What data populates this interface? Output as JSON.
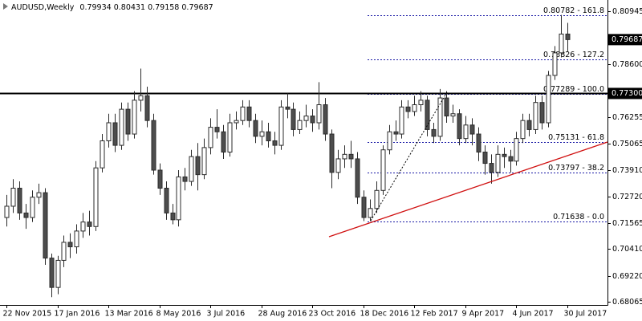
{
  "chart_data": {
    "type": "candlestick",
    "symbol": "AUDUSD,Weekly",
    "ohlc": [
      0.79934,
      0.80431,
      0.79158,
      0.79687
    ],
    "categories": [
      "22 Nov 2015",
      null,
      null,
      null,
      null,
      null,
      null,
      null,
      "17 Jan 2016",
      null,
      null,
      null,
      null,
      null,
      null,
      null,
      "13 Mar 2016",
      null,
      null,
      null,
      null,
      null,
      null,
      null,
      "8 May 2016",
      null,
      null,
      null,
      null,
      null,
      null,
      null,
      "3 Jul 2016",
      null,
      null,
      null,
      null,
      null,
      null,
      null,
      "28 Aug 2016",
      null,
      null,
      null,
      null,
      null,
      null,
      null,
      "23 Oct 2016",
      null,
      null,
      null,
      null,
      null,
      null,
      null,
      "18 Dec 2016",
      null,
      null,
      null,
      null,
      null,
      null,
      null,
      "12 Feb 2017",
      null,
      null,
      null,
      null,
      null,
      null,
      null,
      "9 Apr 2017",
      null,
      null,
      null,
      null,
      null,
      null,
      null,
      "4 Jun 2017",
      null,
      null,
      null,
      null,
      null,
      null,
      null,
      "30 Jul 2017"
    ],
    "open": [
      0.718,
      0.723,
      0.731,
      0.72,
      0.718,
      0.727,
      0.729,
      0.7,
      0.687,
      0.699,
      0.707,
      0.705,
      0.712,
      0.716,
      0.714,
      0.74,
      0.752,
      0.76,
      0.75,
      0.766,
      0.755,
      0.77,
      0.772,
      0.761,
      0.739,
      0.731,
      0.72,
      0.717,
      0.736,
      0.734,
      0.745,
      0.737,
      0.749,
      0.758,
      0.756,
      0.747,
      0.76,
      0.761,
      0.767,
      0.761,
      0.754,
      0.756,
      0.752,
      0.75,
      0.767,
      0.766,
      0.757,
      0.761,
      0.763,
      0.76,
      0.768,
      0.755,
      0.738,
      0.744,
      0.746,
      0.744,
      0.727,
      0.718,
      0.722,
      0.73,
      0.748,
      0.756,
      0.755,
      0.767,
      0.765,
      0.768,
      0.77,
      0.757,
      0.754,
      0.771,
      0.763,
      0.764,
      0.753,
      0.759,
      0.755,
      0.747,
      0.742,
      0.738,
      0.746,
      0.745,
      0.743,
      0.753,
      0.761,
      0.757,
      0.769,
      0.76,
      0.781,
      0.791,
      0.79934
    ],
    "high": [
      0.728,
      0.735,
      0.734,
      0.724,
      0.73,
      0.733,
      0.731,
      0.702,
      0.701,
      0.71,
      0.711,
      0.715,
      0.72,
      0.721,
      0.743,
      0.755,
      0.764,
      0.764,
      0.769,
      0.769,
      0.774,
      0.784,
      0.776,
      0.764,
      0.742,
      0.734,
      0.724,
      0.739,
      0.74,
      0.748,
      0.751,
      0.753,
      0.762,
      0.766,
      0.759,
      0.764,
      0.765,
      0.77,
      0.77,
      0.764,
      0.761,
      0.76,
      0.756,
      0.77,
      0.773,
      0.769,
      0.765,
      0.768,
      0.766,
      0.778,
      0.771,
      0.757,
      0.748,
      0.75,
      0.752,
      0.747,
      0.73,
      0.726,
      0.734,
      0.75,
      0.759,
      0.761,
      0.77,
      0.77,
      0.772,
      0.774,
      0.772,
      0.76,
      0.775,
      0.774,
      0.768,
      0.766,
      0.763,
      0.762,
      0.758,
      0.75,
      0.746,
      0.75,
      0.749,
      0.748,
      0.756,
      0.764,
      0.764,
      0.772,
      0.772,
      0.783,
      0.794,
      0.80782,
      0.80431
    ],
    "low": [
      0.714,
      0.72,
      0.717,
      0.713,
      0.716,
      0.724,
      0.697,
      0.6827,
      0.684,
      0.696,
      0.7,
      0.702,
      0.709,
      0.71,
      0.712,
      0.738,
      0.749,
      0.747,
      0.748,
      0.752,
      0.753,
      0.765,
      0.758,
      0.737,
      0.728,
      0.717,
      0.715,
      0.714,
      0.73,
      0.732,
      0.73,
      0.735,
      0.746,
      0.753,
      0.744,
      0.745,
      0.757,
      0.759,
      0.758,
      0.751,
      0.75,
      0.749,
      0.746,
      0.748,
      0.762,
      0.754,
      0.755,
      0.758,
      0.756,
      0.757,
      0.752,
      0.731,
      0.735,
      0.74,
      0.74,
      0.724,
      0.7164,
      0.7164,
      0.72,
      0.728,
      0.746,
      0.752,
      0.753,
      0.762,
      0.763,
      0.765,
      0.754,
      0.751,
      0.752,
      0.76,
      0.76,
      0.75,
      0.751,
      0.75,
      0.743,
      0.737,
      0.733,
      0.736,
      0.74,
      0.738,
      0.741,
      0.751,
      0.754,
      0.755,
      0.757,
      0.758,
      0.779,
      0.789,
      0.79158
    ],
    "close": [
      0.723,
      0.731,
      0.72,
      0.718,
      0.727,
      0.729,
      0.7,
      0.687,
      0.699,
      0.707,
      0.705,
      0.712,
      0.716,
      0.714,
      0.74,
      0.752,
      0.76,
      0.75,
      0.766,
      0.755,
      0.77,
      0.772,
      0.761,
      0.739,
      0.731,
      0.72,
      0.717,
      0.736,
      0.734,
      0.745,
      0.737,
      0.749,
      0.758,
      0.756,
      0.747,
      0.76,
      0.761,
      0.767,
      0.761,
      0.754,
      0.756,
      0.752,
      0.75,
      0.767,
      0.766,
      0.757,
      0.761,
      0.763,
      0.76,
      0.768,
      0.755,
      0.738,
      0.744,
      0.746,
      0.744,
      0.727,
      0.718,
      0.722,
      0.73,
      0.748,
      0.756,
      0.755,
      0.767,
      0.765,
      0.768,
      0.77,
      0.757,
      0.754,
      0.771,
      0.763,
      0.764,
      0.753,
      0.759,
      0.755,
      0.747,
      0.742,
      0.738,
      0.746,
      0.745,
      0.743,
      0.753,
      0.761,
      0.757,
      0.769,
      0.76,
      0.781,
      0.791,
      0.79934,
      0.79687
    ],
    "up_color": "#ffffff",
    "down_color": "#4d4d4d",
    "edge_color": "#2b2b2b",
    "ylim": [
      0.67923,
      0.81443
    ],
    "yticks": [
      0.80945,
      {
        "value": 0.786,
        "label": "0.78600"
      },
      0.76255,
      0.75065,
      {
        "value": 0.7391,
        "label": "0.73910"
      },
      {
        "value": 0.7272,
        "label": "0.72720"
      },
      0.71565,
      {
        "value": 0.7041,
        "label": "0.70410"
      },
      {
        "value": 0.6922,
        "label": "0.69220"
      },
      0.68065
    ],
    "current_price": 0.79687,
    "hline": {
      "value": 0.773,
      "label": "0.77300"
    },
    "fib_color": "#1a1aa6",
    "fib_levels": [
      {
        "value": 0.80782,
        "label": "0.80782 - 161.8"
      },
      {
        "value": 0.78826,
        "label": "0.78826 - 127.2"
      },
      {
        "value": 0.77289,
        "label": "0.77289 - 100.0"
      },
      {
        "value": 0.75131,
        "label": "0.75131 - 61.8"
      },
      {
        "value": 0.73797,
        "label": "0.73797 - 38.2"
      },
      {
        "value": 0.71638,
        "label": "0.71638 - 0.0"
      }
    ]
  }
}
